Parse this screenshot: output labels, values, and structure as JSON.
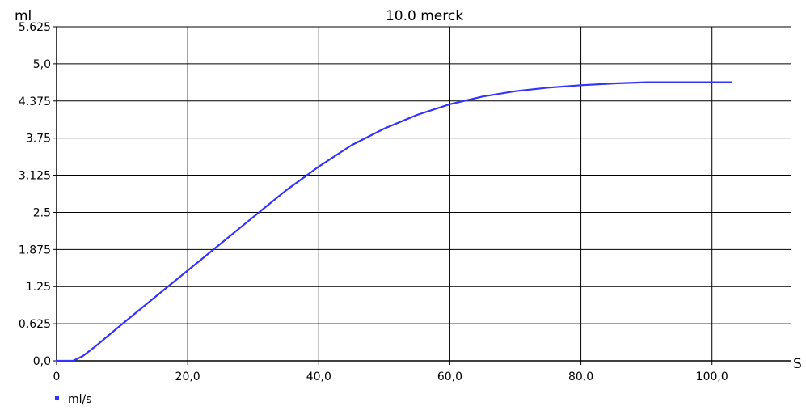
{
  "chart_data": {
    "type": "line",
    "title": "10.0 merck",
    "xlabel": "S",
    "ylabel": "ml",
    "xlim": [
      0,
      112
    ],
    "ylim": [
      0,
      5.625
    ],
    "grid": true,
    "legend_position": "bottom-left",
    "x_ticks": [
      {
        "value": 0,
        "label": "0"
      },
      {
        "value": 20,
        "label": "20,0"
      },
      {
        "value": 40,
        "label": "40,0"
      },
      {
        "value": 60,
        "label": "60,0"
      },
      {
        "value": 80,
        "label": "80,0"
      },
      {
        "value": 100,
        "label": "100,0"
      }
    ],
    "y_ticks": [
      {
        "value": 0,
        "label": "0,0"
      },
      {
        "value": 0.625,
        "label": "0.625"
      },
      {
        "value": 1.25,
        "label": "1.25"
      },
      {
        "value": 1.875,
        "label": "1.875"
      },
      {
        "value": 2.5,
        "label": "2.5"
      },
      {
        "value": 3.125,
        "label": "3.125"
      },
      {
        "value": 3.75,
        "label": "3.75"
      },
      {
        "value": 4.375,
        "label": "4.375"
      },
      {
        "value": 5.0,
        "label": "5,0"
      },
      {
        "value": 5.625,
        "label": "5.625"
      }
    ],
    "series": [
      {
        "name": "ml/s",
        "color": "#3333ff",
        "x": [
          0,
          2.5,
          4,
          6,
          10,
          15,
          20,
          25,
          30,
          35,
          40,
          45,
          50,
          55,
          60,
          65,
          70,
          75,
          80,
          85,
          90,
          95,
          100,
          103
        ],
        "y": [
          0,
          0,
          0.08,
          0.25,
          0.62,
          1.07,
          1.52,
          1.97,
          2.42,
          2.87,
          3.27,
          3.63,
          3.91,
          4.14,
          4.32,
          4.45,
          4.54,
          4.6,
          4.64,
          4.67,
          4.69,
          4.69,
          4.69,
          4.69
        ]
      }
    ]
  }
}
